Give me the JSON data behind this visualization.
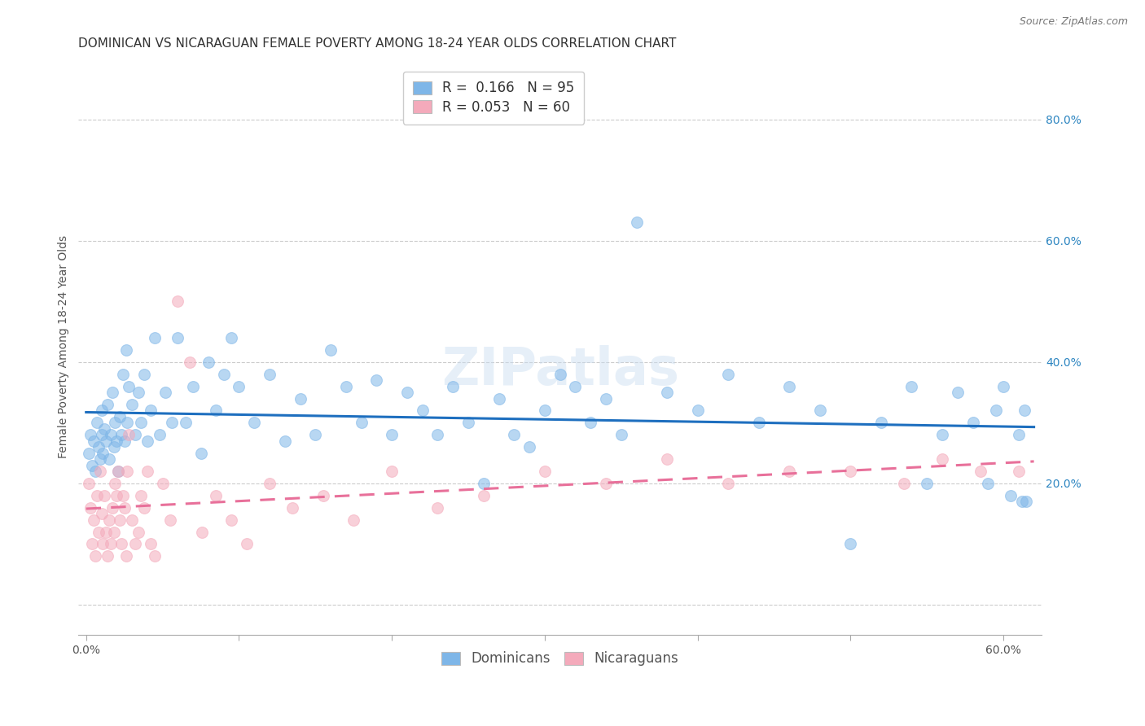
{
  "title": "DOMINICAN VS NICARAGUAN FEMALE POVERTY AMONG 18-24 YEAR OLDS CORRELATION CHART",
  "source": "Source: ZipAtlas.com",
  "ylabel": "Female Poverty Among 18-24 Year Olds",
  "xlim": [
    -0.005,
    0.625
  ],
  "ylim": [
    -0.05,
    0.9
  ],
  "xticks": [
    0.0,
    0.1,
    0.2,
    0.3,
    0.4,
    0.5,
    0.6
  ],
  "xticklabels": [
    "0.0%",
    "",
    "",
    "",
    "",
    "",
    "60.0%"
  ],
  "yticks_right": [
    0.0,
    0.2,
    0.4,
    0.6,
    0.8
  ],
  "yticklabels_right": [
    "",
    "20.0%",
    "40.0%",
    "60.0%",
    "80.0%"
  ],
  "dominican_color": "#7EB6E8",
  "nicaraguan_color": "#F4AABB",
  "dominican_line_color": "#1E6FBF",
  "nicaraguan_line_color": "#E8709A",
  "dominican_R": 0.166,
  "dominican_N": 95,
  "nicaraguan_R": 0.053,
  "nicaraguan_N": 60,
  "watermark": "ZIPatlas",
  "background_color": "#FFFFFF",
  "grid_color": "#CCCCCC",
  "title_fontsize": 11,
  "axis_label_fontsize": 10,
  "tick_fontsize": 10,
  "source_fontsize": 9,
  "legend_fontsize": 12,
  "marker_size": 100,
  "marker_alpha": 0.55,
  "dominican_x": [
    0.002,
    0.003,
    0.004,
    0.005,
    0.006,
    0.007,
    0.008,
    0.009,
    0.01,
    0.01,
    0.011,
    0.012,
    0.013,
    0.014,
    0.015,
    0.016,
    0.017,
    0.018,
    0.019,
    0.02,
    0.021,
    0.022,
    0.023,
    0.024,
    0.025,
    0.026,
    0.027,
    0.028,
    0.03,
    0.032,
    0.034,
    0.036,
    0.038,
    0.04,
    0.042,
    0.045,
    0.048,
    0.052,
    0.056,
    0.06,
    0.065,
    0.07,
    0.075,
    0.08,
    0.085,
    0.09,
    0.095,
    0.1,
    0.11,
    0.12,
    0.13,
    0.14,
    0.15,
    0.16,
    0.17,
    0.18,
    0.19,
    0.2,
    0.21,
    0.22,
    0.23,
    0.24,
    0.25,
    0.26,
    0.27,
    0.28,
    0.29,
    0.3,
    0.31,
    0.32,
    0.33,
    0.34,
    0.35,
    0.36,
    0.38,
    0.4,
    0.42,
    0.44,
    0.46,
    0.48,
    0.5,
    0.52,
    0.54,
    0.55,
    0.56,
    0.57,
    0.58,
    0.59,
    0.595,
    0.6,
    0.605,
    0.61,
    0.612,
    0.614,
    0.615
  ],
  "dominican_y": [
    0.25,
    0.28,
    0.23,
    0.27,
    0.22,
    0.3,
    0.26,
    0.24,
    0.28,
    0.32,
    0.25,
    0.29,
    0.27,
    0.33,
    0.24,
    0.28,
    0.35,
    0.26,
    0.3,
    0.27,
    0.22,
    0.31,
    0.28,
    0.38,
    0.27,
    0.42,
    0.3,
    0.36,
    0.33,
    0.28,
    0.35,
    0.3,
    0.38,
    0.27,
    0.32,
    0.44,
    0.28,
    0.35,
    0.3,
    0.44,
    0.3,
    0.36,
    0.25,
    0.4,
    0.32,
    0.38,
    0.44,
    0.36,
    0.3,
    0.38,
    0.27,
    0.34,
    0.28,
    0.42,
    0.36,
    0.3,
    0.37,
    0.28,
    0.35,
    0.32,
    0.28,
    0.36,
    0.3,
    0.2,
    0.34,
    0.28,
    0.26,
    0.32,
    0.38,
    0.36,
    0.3,
    0.34,
    0.28,
    0.63,
    0.35,
    0.32,
    0.38,
    0.3,
    0.36,
    0.32,
    0.1,
    0.3,
    0.36,
    0.2,
    0.28,
    0.35,
    0.3,
    0.2,
    0.32,
    0.36,
    0.18,
    0.28,
    0.17,
    0.32,
    0.17
  ],
  "nicaraguan_x": [
    0.002,
    0.003,
    0.004,
    0.005,
    0.006,
    0.007,
    0.008,
    0.009,
    0.01,
    0.011,
    0.012,
    0.013,
    0.014,
    0.015,
    0.016,
    0.017,
    0.018,
    0.019,
    0.02,
    0.021,
    0.022,
    0.023,
    0.024,
    0.025,
    0.026,
    0.027,
    0.028,
    0.03,
    0.032,
    0.034,
    0.036,
    0.038,
    0.04,
    0.042,
    0.045,
    0.05,
    0.055,
    0.06,
    0.068,
    0.076,
    0.085,
    0.095,
    0.105,
    0.12,
    0.135,
    0.155,
    0.175,
    0.2,
    0.23,
    0.26,
    0.3,
    0.34,
    0.38,
    0.42,
    0.46,
    0.5,
    0.535,
    0.56,
    0.585,
    0.61
  ],
  "nicaraguan_y": [
    0.2,
    0.16,
    0.1,
    0.14,
    0.08,
    0.18,
    0.12,
    0.22,
    0.15,
    0.1,
    0.18,
    0.12,
    0.08,
    0.14,
    0.1,
    0.16,
    0.12,
    0.2,
    0.18,
    0.22,
    0.14,
    0.1,
    0.18,
    0.16,
    0.08,
    0.22,
    0.28,
    0.14,
    0.1,
    0.12,
    0.18,
    0.16,
    0.22,
    0.1,
    0.08,
    0.2,
    0.14,
    0.5,
    0.4,
    0.12,
    0.18,
    0.14,
    0.1,
    0.2,
    0.16,
    0.18,
    0.14,
    0.22,
    0.16,
    0.18,
    0.22,
    0.2,
    0.24,
    0.2,
    0.22,
    0.22,
    0.2,
    0.24,
    0.22,
    0.22
  ]
}
